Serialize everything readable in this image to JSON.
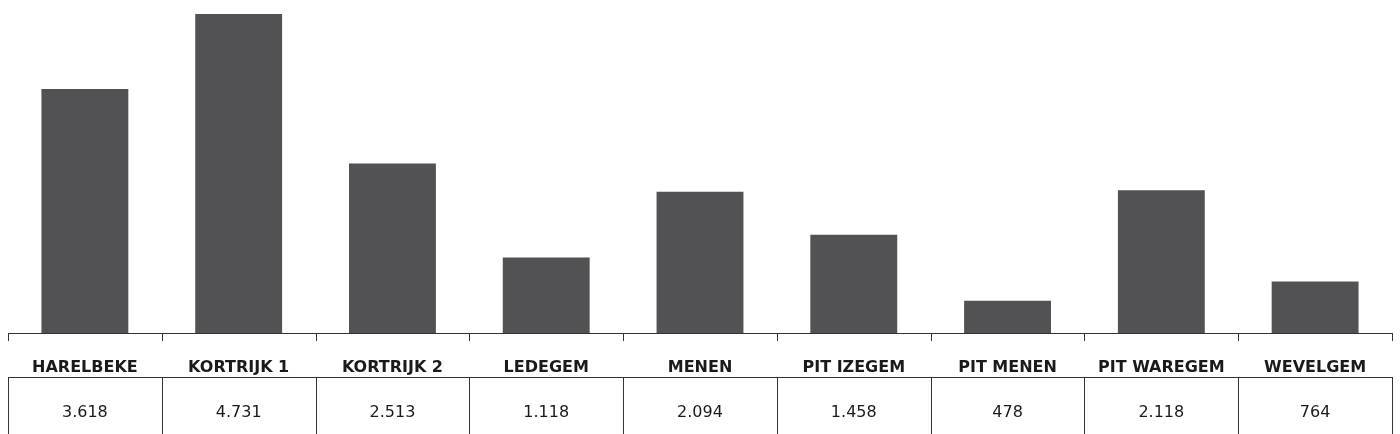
{
  "chart_data": {
    "type": "bar",
    "categories": [
      "HARELBEKE",
      "KORTRIJK 1",
      "KORTRIJK 2",
      "LEDEGEM",
      "MENEN",
      "PIT IZEGEM",
      "PIT MENEN",
      "PIT WAREGEM",
      "WEVELGEM"
    ],
    "values": [
      3618,
      4731,
      2513,
      1118,
      2094,
      1458,
      478,
      2118,
      764
    ],
    "value_labels": [
      "3.618",
      "4.731",
      "2.513",
      "1.118",
      "2.094",
      "1.458",
      "478",
      "2.118",
      "764"
    ],
    "color": "#525254"
  }
}
